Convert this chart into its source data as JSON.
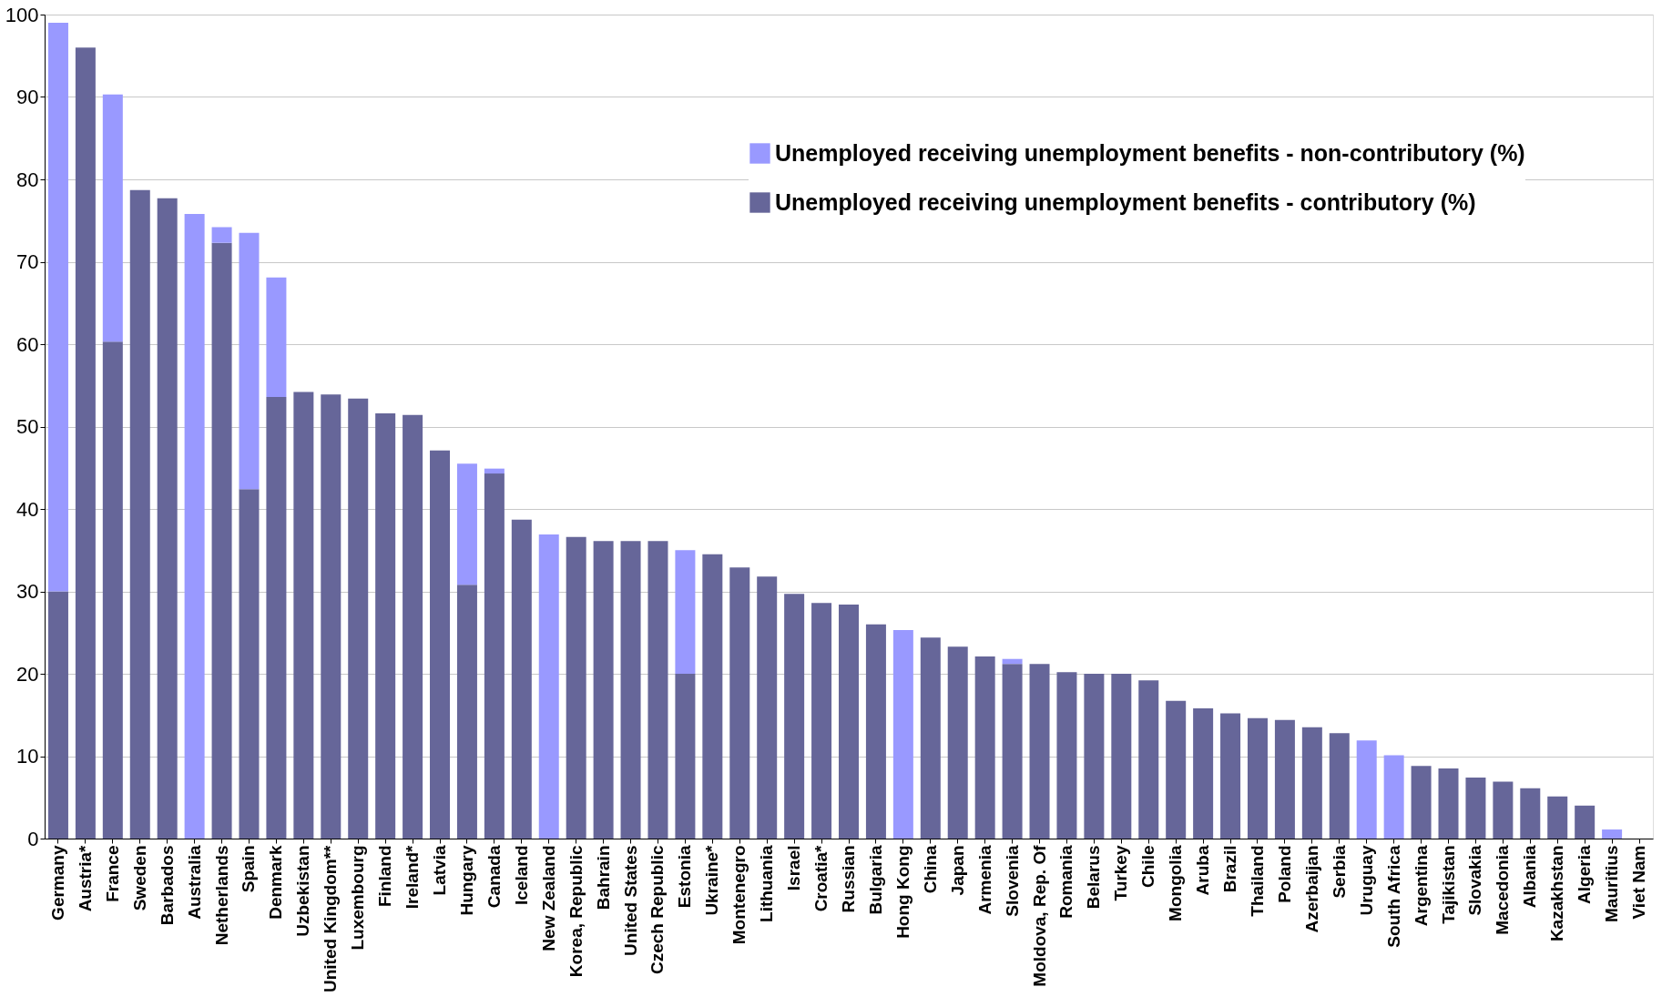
{
  "chart_data": {
    "type": "bar",
    "stacked": true,
    "categories": [
      "Germany",
      "Austria*",
      "France",
      "Sweden",
      "Barbados",
      "Australia",
      "Netherlands",
      "Spain",
      "Denmark",
      "Uzbekistan",
      "United Kingdom**",
      "Luxembourg",
      "Finland",
      "Ireland*",
      "Latvia",
      "Hungary",
      "Canada",
      "Iceland",
      "New Zealand",
      "Korea, Republic",
      "Bahrain",
      "United States",
      "Czech Republic",
      "Estonia",
      "Ukraine*",
      "Montenegro",
      "Lithuania",
      "Israel",
      "Croatia*",
      "Russian",
      "Bulgaria",
      "Hong Kong",
      "China",
      "Japan",
      "Armenia",
      "Slovenia",
      "Moldova, Rep. Of",
      "Romania",
      "Belarus",
      "Turkey",
      "Chile",
      "Mongolia",
      "Aruba",
      "Brazil",
      "Thailand",
      "Poland",
      "Azerbaijan",
      "Serbia",
      "Uruguay",
      "South Africa",
      "Argentina",
      "Tajikistan",
      "Slovakia",
      "Macedonia",
      "Albania",
      "Kazakhstan",
      "Algeria",
      "Mauritius",
      "Viet Nam"
    ],
    "series": [
      {
        "name": "Unemployed receiving unemployment benefits - contributory (%)",
        "color": "#666699",
        "values": [
          30,
          96,
          60.3,
          78.7,
          77.7,
          0,
          72.3,
          42.4,
          53.6,
          54.2,
          53.9,
          53.4,
          51.6,
          51.4,
          47.1,
          30.8,
          44.3,
          38.7,
          0,
          36.6,
          36.1,
          36.1,
          36.1,
          20,
          34.5,
          32.9,
          31.8,
          29.7,
          28.6,
          28.4,
          26,
          0,
          24.4,
          23.3,
          22.1,
          21.2,
          21.2,
          20.2,
          20,
          20,
          19.2,
          16.7,
          15.8,
          15.2,
          14.6,
          14.4,
          13.5,
          12.8,
          0,
          0,
          8.8,
          8.5,
          7.4,
          6.9,
          6.1,
          5.1,
          4,
          0,
          0
        ]
      },
      {
        "name": "Unemployed receiving unemployment benefits - non-contributory (%)",
        "color": "#9999ff",
        "values": [
          69,
          0,
          30,
          0,
          0,
          75.8,
          1.9,
          31.1,
          14.5,
          0,
          0,
          0,
          0,
          0,
          0,
          14.7,
          0.6,
          0,
          36.9,
          0,
          0,
          0,
          0,
          15,
          0,
          0,
          0,
          0,
          0,
          0,
          0,
          25.3,
          0,
          0,
          0,
          0.6,
          0,
          0,
          0,
          0,
          0,
          0,
          0,
          0,
          0,
          0,
          0,
          0,
          11.9,
          10.1,
          0,
          0,
          0,
          0,
          0,
          0,
          0,
          1.1,
          0
        ]
      }
    ],
    "ylim": [
      0,
      100
    ],
    "yticks": [
      0,
      10,
      20,
      30,
      40,
      50,
      60,
      70,
      80,
      90,
      100
    ],
    "grid": "y",
    "legend": "top right"
  }
}
